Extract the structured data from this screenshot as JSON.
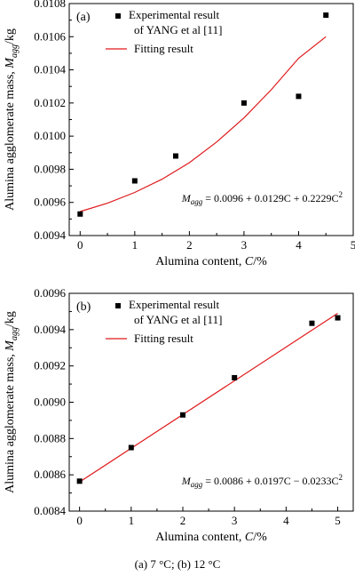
{
  "caption": "(a) 7 °C; (b) 12 °C",
  "chart_data": [
    {
      "type": "scatter",
      "panel_label": "(a)",
      "xlabel_text": "Alumina content, ",
      "xlabel_var": "C",
      "xlabel_unit": "/%",
      "ylabel_main": "Alumina agglomerate mass, ",
      "ylabel_var": "M",
      "ylabel_sub": "agg",
      "ylabel_unit": "/kg",
      "xlim": [
        -0.2,
        5
      ],
      "ylim": [
        0.0094,
        0.0108
      ],
      "x_ticks": [
        "0",
        "1",
        "2",
        "3",
        "4",
        "5"
      ],
      "y_ticks": [
        "0.0094",
        "0.0096",
        "0.0098",
        "0.0100",
        "0.0102",
        "0.0104",
        "0.0106",
        "0.0108"
      ],
      "legend_entries": [
        "Experimental result",
        "of YANG et al [11]",
        "Fitting result"
      ],
      "equation": "M_agg = 0.0096 + 0.0129C + 0.2229C^2",
      "equation_parts": {
        "var": "M",
        "sub": "agg",
        "rhs": " = 0.0096 + 0.0129C + 0.2229C",
        "sup": "2"
      },
      "series": [
        {
          "name": "Experimental result of YANG et al [11]",
          "marker": "square",
          "x": [
            0,
            1,
            1.75,
            3,
            4,
            4.5
          ],
          "y": [
            0.00953,
            0.00973,
            0.00988,
            0.0102,
            0.01024,
            0.01073
          ]
        },
        {
          "name": "Fitting result",
          "line": true,
          "color": "#e0191b",
          "x": [
            0,
            0.5,
            1,
            1.5,
            2,
            2.5,
            3,
            3.5,
            4,
            4.5
          ],
          "y": [
            0.009545,
            0.009595,
            0.00966,
            0.00974,
            0.00984,
            0.009965,
            0.01011,
            0.01028,
            0.01047,
            0.0106
          ]
        }
      ]
    },
    {
      "type": "scatter",
      "panel_label": "(b)",
      "xlabel_text": "Alumina content, ",
      "xlabel_var": "C",
      "xlabel_unit": "/%",
      "ylabel_main": "Alumina agglomerate mass, ",
      "ylabel_var": "M",
      "ylabel_sub": "agg",
      "ylabel_unit": "/kg",
      "xlim": [
        -0.2,
        5.3
      ],
      "ylim": [
        0.0084,
        0.0096
      ],
      "x_ticks": [
        "0",
        "1",
        "2",
        "3",
        "4",
        "5"
      ],
      "y_ticks": [
        "0.0084",
        "0.0086",
        "0.0088",
        "0.0090",
        "0.0092",
        "0.0094",
        "0.0096"
      ],
      "legend_entries": [
        "Experimental result",
        "of YANG et al [11]",
        "Fitting result"
      ],
      "equation": "M_agg = 0.0086 + 0.0197C − 0.0233C^2",
      "equation_parts": {
        "var": "M",
        "sub": "agg",
        "rhs": " = 0.0086 + 0.0197C − 0.0233C",
        "sup": "2"
      },
      "series": [
        {
          "name": "Experimental result of YANG et al [11]",
          "marker": "square",
          "x": [
            0,
            1,
            2,
            3,
            4.5,
            5
          ],
          "y": [
            0.008565,
            0.00875,
            0.00893,
            0.009135,
            0.009435,
            0.009465
          ]
        },
        {
          "name": "Fitting result",
          "line": true,
          "color": "#e0191b",
          "x": [
            0,
            5
          ],
          "y": [
            0.00856,
            0.00949
          ]
        }
      ]
    }
  ]
}
